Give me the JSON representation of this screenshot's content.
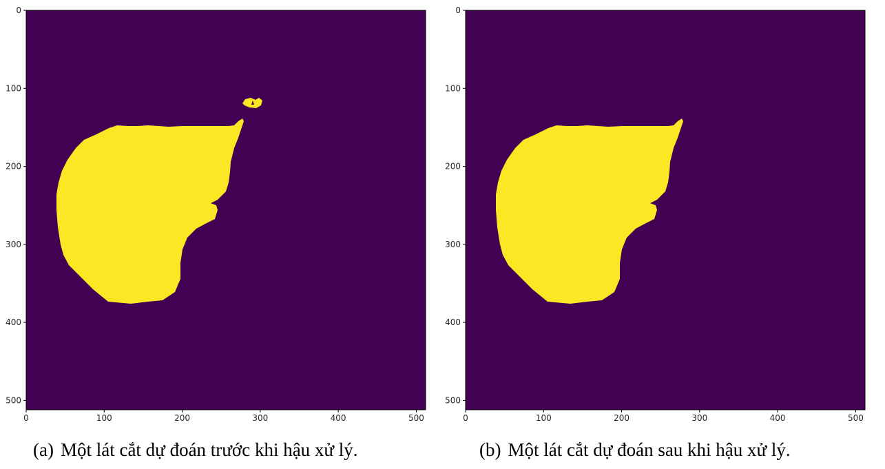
{
  "figure": {
    "colors": {
      "background_class": "#440154",
      "foreground_class": "#fde725",
      "axis": "#000000",
      "tick_text": "#262626"
    },
    "image_size": [
      512,
      512
    ],
    "x_ticks": [
      "0",
      "100",
      "200",
      "300",
      "400",
      "500"
    ],
    "y_ticks": [
      "0",
      "100",
      "200",
      "300",
      "400",
      "500"
    ],
    "panels": [
      {
        "id": "a",
        "label": "(a)",
        "caption": "Một lát cắt dự đoán trước khi hậu xử lý.",
        "has_small_blob": true
      },
      {
        "id": "b",
        "label": "(b)",
        "caption": "Một lát cắt dự đoán sau khi hậu xử lý.",
        "has_small_blob": false
      }
    ]
  }
}
